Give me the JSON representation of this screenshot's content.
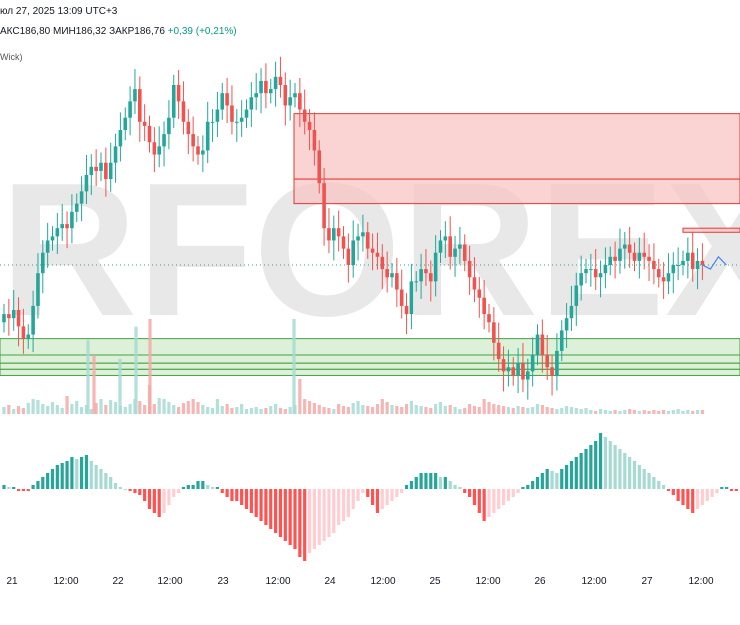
{
  "header": {
    "datetime": "юл 27, 2025 13:09 UTC+3",
    "ohlc_max": "АКС186,80",
    "ohlc_min": "МИН186,32",
    "ohlc_close": "ЗАКР186,76",
    "ohlc_change": "+0,39 (+0,21%)",
    "indicator_label": "Wick)"
  },
  "watermark": {
    "text": "RFOREX.",
    "color": "#e8e8e8"
  },
  "colors": {
    "up": "#26a69a",
    "down": "#ef5350",
    "vol_up": "#a6dad3",
    "vol_down": "#f5a9a8",
    "hist_up_strong": "#26a69a",
    "hist_up_weak": "#a6dad3",
    "hist_down_strong": "#ff5252",
    "hist_down_weak": "#ffcdd2",
    "resist_fill": "#f8c4c4",
    "resist_line": "#e53935",
    "support_fill": "#cdebc6",
    "support_line": "#43a047",
    "forecast": "#4285f4"
  },
  "chart_data": {
    "type": "candlestick",
    "x_axis_labels": [
      "21",
      "12:00",
      "22",
      "12:00",
      "23",
      "12:00",
      "24",
      "12:00",
      "25",
      "12:00",
      "26",
      "12:00",
      "27",
      "12:00"
    ],
    "close_values": [
      182.9,
      182.8,
      183.0,
      182.6,
      182.3,
      182.4,
      183.1,
      183.9,
      184.4,
      184.7,
      184.8,
      185.0,
      185.1,
      185.0,
      185.4,
      185.6,
      185.9,
      186.3,
      186.5,
      186.4,
      186.6,
      186.2,
      186.6,
      187.0,
      187.4,
      187.7,
      188.1,
      188.4,
      187.6,
      187.5,
      187.1,
      186.8,
      187.0,
      187.3,
      187.7,
      188.5,
      188.1,
      187.6,
      187.3,
      187.0,
      186.8,
      186.9,
      187.6,
      187.6,
      187.9,
      188.3,
      188.0,
      187.6,
      187.6,
      187.7,
      187.9,
      188.2,
      188.3,
      188.6,
      188.3,
      188.4,
      188.7,
      188.5,
      188.0,
      188.2,
      188.3,
      187.9,
      187.6,
      187.4,
      186.9,
      186.1,
      185.0,
      184.7,
      185.0,
      184.8,
      184.5,
      184.1,
      184.7,
      184.8,
      184.9,
      184.5,
      184.4,
      184.3,
      184.0,
      183.8,
      183.9,
      183.5,
      183.1,
      182.9,
      183.7,
      183.7,
      184.0,
      183.9,
      183.7,
      184.4,
      184.7,
      184.8,
      184.3,
      184.5,
      184.6,
      184.2,
      183.8,
      183.5,
      183.3,
      182.9,
      182.7,
      182.2,
      181.8,
      181.5,
      181.6,
      181.4,
      181.7,
      181.3,
      181.5,
      181.9,
      182.4,
      181.9,
      181.6,
      181.4,
      182.0,
      182.5,
      182.8,
      183.1,
      183.6,
      183.9,
      184.0,
      184.0,
      183.8,
      183.9,
      184.1,
      184.3,
      184.2,
      184.5,
      184.6,
      184.4,
      184.2,
      184.4,
      184.3,
      184.2,
      184.0,
      183.8,
      183.7,
      183.9,
      184.1,
      184.1,
      184.2,
      184.4,
      184.0,
      184.2,
      184.1
    ],
    "forecast": [
      184.0,
      184.3,
      184.1
    ],
    "volume": [
      14,
      18,
      10,
      16,
      12,
      22,
      30,
      28,
      20,
      16,
      24,
      18,
      12,
      36,
      20,
      26,
      14,
      18,
      10,
      22,
      30,
      18,
      28,
      24,
      16,
      14,
      20,
      30,
      26,
      18,
      58,
      20,
      32,
      30,
      24,
      18,
      14,
      22,
      26,
      30,
      24,
      18,
      14,
      12,
      30,
      16,
      20,
      12,
      14,
      20,
      10,
      12,
      14,
      10,
      12,
      16,
      20,
      12,
      10,
      14,
      18,
      70,
      30,
      26,
      22,
      18,
      14,
      12,
      10,
      20,
      16,
      14,
      22,
      26,
      18,
      16,
      14,
      20,
      30,
      24,
      18,
      16,
      14,
      20,
      26,
      18,
      16,
      14,
      12,
      20,
      24,
      16,
      18,
      14,
      10,
      12,
      20,
      16,
      14,
      30,
      24,
      20,
      18,
      16,
      14,
      12,
      16,
      14,
      12,
      14,
      20,
      18,
      14,
      12,
      10,
      12,
      16,
      14,
      12,
      10,
      12,
      8,
      6,
      10,
      8,
      6,
      8,
      6,
      8,
      10,
      8,
      6,
      8,
      6,
      8,
      6,
      8,
      6,
      8,
      10,
      6,
      8,
      6,
      8,
      8
    ],
    "volume_spikes": [
      [
        88,
        0.78
      ],
      [
        94,
        0.62
      ],
      [
        120,
        0.58
      ],
      [
        136,
        0.92
      ],
      [
        150,
        1.0
      ],
      [
        294,
        1.0
      ]
    ],
    "histogram": [
      2,
      1,
      1,
      -1,
      -1,
      -1,
      2,
      4,
      6,
      8,
      10,
      12,
      13,
      14,
      16,
      15,
      16,
      17,
      14,
      12,
      10,
      8,
      6,
      3,
      1,
      0,
      -1,
      -2,
      -3,
      -6,
      -10,
      -12,
      -14,
      -12,
      -8,
      -4,
      -2,
      1,
      2,
      2,
      4,
      4,
      2,
      1,
      1,
      -2,
      -4,
      -6,
      -6,
      -8,
      -10,
      -12,
      -14,
      -16,
      -18,
      -20,
      -22,
      -24,
      -26,
      -28,
      -30,
      -34,
      -36,
      -32,
      -30,
      -28,
      -26,
      -24,
      -22,
      -18,
      -16,
      -14,
      -10,
      -6,
      -2,
      -4,
      -8,
      -12,
      -10,
      -8,
      -6,
      -4,
      -2,
      2,
      4,
      6,
      8,
      8,
      8,
      8,
      6,
      6,
      4,
      2,
      1,
      -2,
      -4,
      -8,
      -12,
      -16,
      -14,
      -12,
      -10,
      -8,
      -6,
      -4,
      -2,
      1,
      2,
      4,
      6,
      8,
      10,
      9,
      8,
      10,
      12,
      14,
      16,
      18,
      20,
      22,
      24,
      28,
      26,
      24,
      22,
      20,
      18,
      16,
      14,
      12,
      10,
      8,
      6,
      4,
      2,
      -1,
      -3,
      -6,
      -8,
      -10,
      -12,
      -10,
      -8,
      -6,
      -4,
      -2,
      1,
      1,
      -1,
      -1
    ],
    "resistance_zones": [
      [
        186.2,
        187.8
      ],
      [
        185.6,
        186.2
      ],
      [
        184.9,
        185.0
      ]
    ],
    "support_zones": [
      [
        181.9,
        182.3
      ],
      [
        181.7,
        181.9
      ],
      [
        181.55,
        181.7
      ],
      [
        181.4,
        181.55
      ]
    ],
    "price_range": [
      180.8,
      189.6
    ],
    "last_price": 184.1,
    "grid": false
  }
}
